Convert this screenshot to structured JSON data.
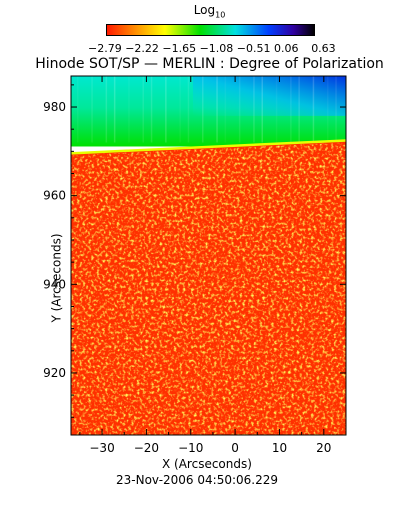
{
  "colorbar": {
    "label": "Log",
    "label_sub": "10",
    "ticks": [
      "−2.79",
      "−2.22",
      "−1.65",
      "−1.08",
      "−0.51",
      "0.06",
      "0.63"
    ]
  },
  "title": "Hinode SOT/SP — MERLIN : Degree of Polarization",
  "timestamp": "23-Nov-2006 04:50:06.229",
  "chart_data": {
    "type": "heatmap",
    "title": "Hinode SOT/SP — MERLIN : Degree of Polarization",
    "xlabel": "X (Arcseconds)",
    "ylabel": "Y (Arcseconds)",
    "xlim": [
      -37,
      25
    ],
    "ylim": [
      906,
      987
    ],
    "xticks": [
      -30,
      -20,
      -10,
      0,
      10,
      20
    ],
    "yticks": [
      920,
      940,
      960,
      980
    ],
    "colorbar_label": "Log10",
    "colorbar_range": [
      -2.79,
      0.63
    ],
    "colorbar_ticks": [
      -2.79,
      -2.22,
      -1.65,
      -1.08,
      -0.51,
      0.06,
      0.63
    ],
    "limb_y": [
      970,
      972
    ],
    "regions": [
      {
        "name": "solar disk",
        "y_range": [
          906,
          970
        ],
        "approx_value": -2.7
      },
      {
        "name": "above limb",
        "y_range": [
          971,
          987
        ],
        "approx_value": -1.2
      },
      {
        "name": "upper right corner",
        "x_range": [
          -5,
          25
        ],
        "y_range": [
          978,
          987
        ],
        "approx_value": -0.3
      }
    ]
  }
}
